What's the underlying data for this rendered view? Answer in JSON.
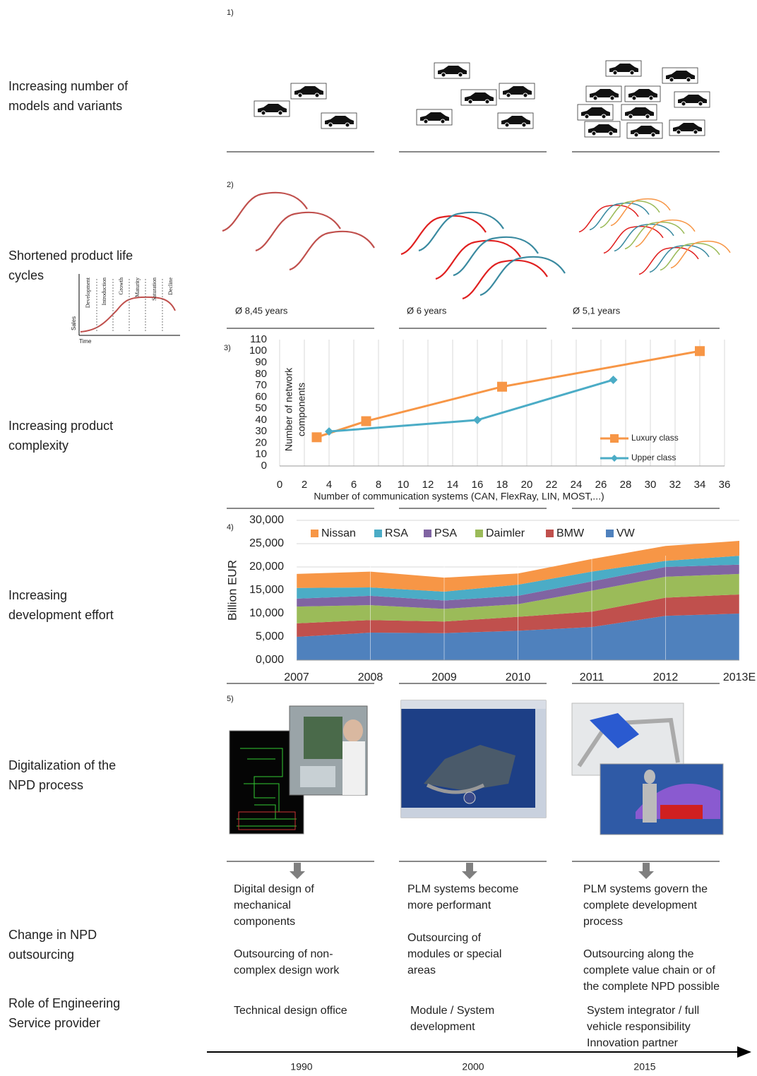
{
  "rows": [
    [
      "Increasing number of",
      "models and variants"
    ],
    [
      "Shortened product life",
      "cycles"
    ],
    [
      "Increasing product",
      "complexity"
    ],
    [
      "Increasing",
      "development effort"
    ],
    [
      "Digitalization of the",
      "NPD process"
    ],
    [
      "Change in NPD",
      "outsourcing"
    ],
    [
      "Role of Engineering",
      "Service provider"
    ]
  ],
  "panels": [
    "1)",
    "2)",
    "3)",
    "4)",
    "5)"
  ],
  "lifecycle": {
    "averages": [
      "Ø 8,45 years",
      "Ø 6 years",
      "Ø 5,1 years"
    ],
    "phases": [
      "Development",
      "Introduction",
      "Growth",
      "Maturity",
      "Saturation",
      "Decline"
    ],
    "y_label": "Sales",
    "x_label": "Time"
  },
  "chart_data": [
    {
      "type": "line",
      "y_label": [
        "Number of network",
        "components"
      ],
      "x_label": "Number of communication systems (CAN, FlexRay, LIN, MOST,...)",
      "xlim": [
        0,
        36
      ],
      "xticks": [
        0,
        2,
        4,
        6,
        8,
        10,
        12,
        14,
        16,
        18,
        20,
        22,
        24,
        26,
        28,
        30,
        32,
        34,
        36
      ],
      "ylim": [
        0,
        110
      ],
      "yticks": [
        0,
        10,
        20,
        30,
        40,
        50,
        60,
        70,
        80,
        90,
        100,
        110
      ],
      "grid": true,
      "legend": "bottom-right",
      "series": [
        {
          "name": "Luxury class",
          "color": "#f79646",
          "marker": "square",
          "x": [
            3,
            7,
            18,
            34
          ],
          "values": [
            25,
            39,
            69,
            100
          ]
        },
        {
          "name": "Upper class",
          "color": "#4bacc6",
          "marker": "diamond",
          "x": [
            4,
            16,
            27
          ],
          "values": [
            30,
            40,
            75
          ]
        }
      ]
    },
    {
      "type": "area",
      "stacked": true,
      "y_label": "Billion EUR",
      "categories": [
        "2007",
        "2008",
        "2009",
        "2010",
        "2011",
        "2012",
        "2013E"
      ],
      "ylim": [
        0,
        30000
      ],
      "yticks": [
        {
          "value": 0,
          "label": "0,000"
        },
        {
          "value": 5000,
          "label": "5,000"
        },
        {
          "value": 10000,
          "label": "10,000"
        },
        {
          "value": 15000,
          "label": "15,000"
        },
        {
          "value": 20000,
          "label": "20,000"
        },
        {
          "value": 25000,
          "label": "25,000"
        },
        {
          "value": 30000,
          "label": "30,000"
        }
      ],
      "grid": true,
      "legend": "top",
      "series": [
        {
          "name": "VW",
          "color": "#4f81bd",
          "values": [
            5000,
            5900,
            5800,
            6300,
            7100,
            9500,
            10000
          ]
        },
        {
          "name": "BMW",
          "color": "#c0504d",
          "values": [
            2900,
            2700,
            2500,
            3000,
            3300,
            3900,
            4100
          ]
        },
        {
          "name": "Daimler",
          "color": "#9bbb59",
          "values": [
            3600,
            3200,
            2700,
            2700,
            4500,
            4500,
            4400
          ]
        },
        {
          "name": "PSA",
          "color": "#8064a2",
          "values": [
            1700,
            2000,
            1800,
            1800,
            2000,
            2100,
            2000
          ]
        },
        {
          "name": "RSA",
          "color": "#4bacc6",
          "values": [
            2300,
            1800,
            1900,
            2400,
            2100,
            1300,
            1900
          ]
        },
        {
          "name": "Nissan",
          "color": "#f79646",
          "values": [
            3000,
            3400,
            3000,
            2400,
            2700,
            3200,
            3200
          ]
        }
      ]
    }
  ],
  "columns": [
    {
      "design": [
        "Digital design of",
        "mechanical",
        "components"
      ],
      "outsourcing": [
        "Outsourcing of non-",
        "complex design work"
      ],
      "role": [
        "Technical design office"
      ],
      "year": "1990"
    },
    {
      "design": [
        "PLM systems become",
        "more performant"
      ],
      "outsourcing": [
        "Outsourcing of",
        "modules or special",
        "areas"
      ],
      "role": [
        "Module / System",
        "development"
      ],
      "year": "2000"
    },
    {
      "design": [
        "PLM systems govern the",
        "complete development",
        "process"
      ],
      "outsourcing": [
        "Outsourcing along the",
        "complete value chain or of",
        "the complete NPD  possible"
      ],
      "role": [
        "System integrator / full",
        "vehicle responsibility",
        "Innovation partner"
      ],
      "year": "2015"
    }
  ]
}
